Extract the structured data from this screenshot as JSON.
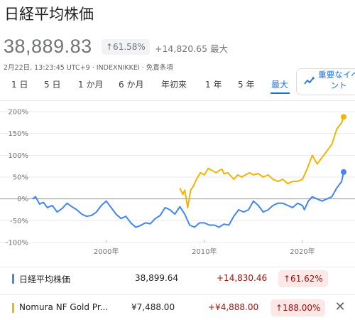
{
  "header": {
    "title": "日経平均株価",
    "price": "38,889.83",
    "pct_change": "↑61.58%",
    "abs_change": "+14,820.65 最大",
    "meta": "2月22日, 13:23:45 UTC+9 · INDEXNIKKEI · 免責条項"
  },
  "ranges": [
    {
      "label": "1 日"
    },
    {
      "label": "5 日"
    },
    {
      "label": "1 か月"
    },
    {
      "label": "6 か月"
    },
    {
      "label": "年初来"
    },
    {
      "label": "1 年"
    },
    {
      "label": "5 年"
    },
    {
      "label": "最大"
    }
  ],
  "active_range": "最大",
  "events_button": {
    "label": "重要なイベント"
  },
  "colors": {
    "nikkei": "#4285f4",
    "gold": "#f4b400",
    "zero": "#9aa0a6",
    "grid": "#e8eaed"
  },
  "chart_data": {
    "type": "line",
    "title": "",
    "xlabel": "",
    "ylabel": "",
    "y_ticks": [
      "200%",
      "150%",
      "100%",
      "50%",
      "0%",
      "-50%",
      "-100%"
    ],
    "x_ticks": [
      "2000年",
      "2010年",
      "2020年"
    ],
    "ylim": [
      -100,
      200
    ],
    "xlim": [
      1992.5,
      2024.2
    ],
    "grid": true,
    "series": [
      {
        "name": "日経平均株価",
        "x": [
          1992.5,
          1992.8,
          1993.2,
          1993.6,
          1994.0,
          1994.5,
          1995.0,
          1995.5,
          1996.0,
          1996.5,
          1997.0,
          1997.5,
          1998.0,
          1998.5,
          1999.0,
          1999.5,
          2000.0,
          2000.5,
          2001.0,
          2001.5,
          2002.0,
          2002.5,
          2003.0,
          2003.4,
          2004.0,
          2004.5,
          2005.0,
          2005.5,
          2006.0,
          2006.5,
          2007.0,
          2007.5,
          2008.0,
          2008.5,
          2009.0,
          2009.5,
          2010.0,
          2010.5,
          2011.0,
          2011.5,
          2012.0,
          2012.5,
          2013.0,
          2013.5,
          2014.0,
          2014.5,
          2015.0,
          2015.5,
          2016.0,
          2016.5,
          2017.0,
          2017.5,
          2018.0,
          2018.5,
          2019.0,
          2019.5,
          2020.0,
          2020.2,
          2020.6,
          2021.0,
          2021.5,
          2022.0,
          2022.5,
          2023.0,
          2023.5,
          2024.0,
          2024.2
        ],
        "values": [
          0,
          5,
          -12,
          -8,
          -20,
          -15,
          -30,
          -22,
          -10,
          -18,
          -25,
          -35,
          -40,
          -38,
          -30,
          -15,
          -5,
          -20,
          -35,
          -45,
          -40,
          -55,
          -65,
          -62,
          -55,
          -57,
          -45,
          -38,
          -20,
          -25,
          -35,
          -18,
          -35,
          -60,
          -65,
          -55,
          -55,
          -60,
          -60,
          -65,
          -58,
          -60,
          -40,
          -25,
          -30,
          -25,
          -5,
          -15,
          -30,
          -25,
          -15,
          -10,
          -10,
          -15,
          -20,
          -10,
          -15,
          -25,
          -5,
          5,
          0,
          -5,
          0,
          5,
          25,
          40,
          61.6
        ]
      },
      {
        "name": "Nomura NF Gold Pr...",
        "x": [
          2007.5,
          2007.8,
          2008.0,
          2008.3,
          2008.6,
          2008.9,
          2009.2,
          2009.6,
          2010.0,
          2010.4,
          2010.8,
          2011.2,
          2011.5,
          2011.8,
          2012.0,
          2012.4,
          2012.8,
          2013.0,
          2013.4,
          2013.8,
          2014.2,
          2014.6,
          2015.0,
          2015.5,
          2016.0,
          2016.5,
          2017.0,
          2017.5,
          2018.0,
          2018.5,
          2019.0,
          2019.5,
          2020.0,
          2020.5,
          2021.0,
          2021.5,
          2022.0,
          2022.5,
          2023.0,
          2023.5,
          2024.0,
          2024.2
        ],
        "values": [
          25,
          10,
          20,
          -20,
          20,
          30,
          45,
          60,
          55,
          70,
          65,
          60,
          65,
          68,
          58,
          60,
          50,
          45,
          55,
          50,
          55,
          60,
          55,
          58,
          50,
          55,
          45,
          40,
          45,
          35,
          40,
          40,
          45,
          70,
          100,
          80,
          95,
          110,
          125,
          160,
          175,
          188
        ]
      }
    ]
  },
  "legend": [
    {
      "name": "日経平均株価",
      "price": "38,899.64",
      "change": "+14,830.46",
      "pct": "↑61.62%"
    },
    {
      "name": "Nomura NF Gold Pr...",
      "price": "¥7,488.00",
      "change": "+¥4,888.00",
      "pct": "↑188.00%",
      "close": "✕"
    }
  ]
}
